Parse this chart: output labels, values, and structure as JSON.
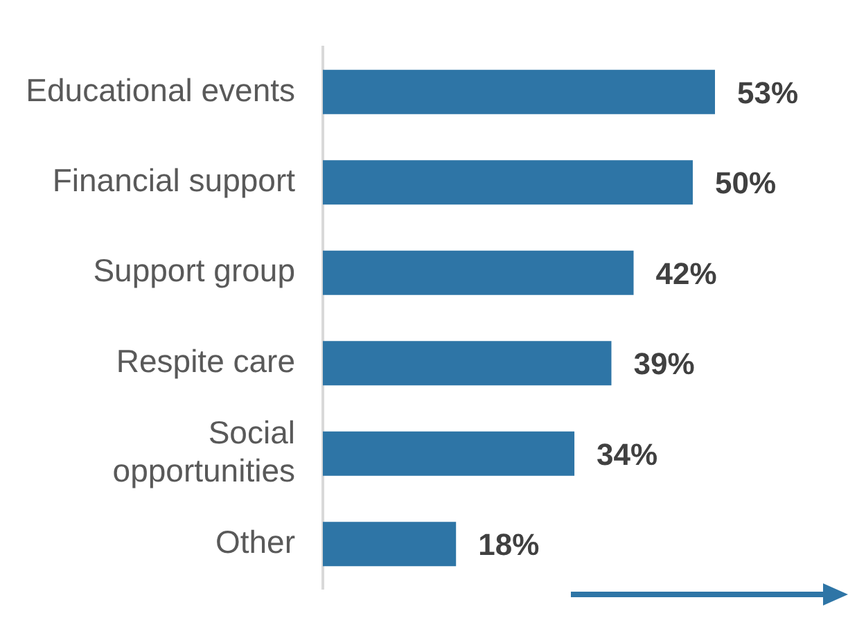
{
  "chart_data": {
    "type": "bar",
    "orientation": "horizontal",
    "categories": [
      "Educational events",
      "Financial support",
      "Support group",
      "Respite care",
      "Social\nopportunities",
      "Other"
    ],
    "values": [
      53,
      50,
      42,
      39,
      34,
      18
    ],
    "value_labels": [
      "53%",
      "50%",
      "42%",
      "39%",
      "34%",
      "18%"
    ],
    "color": "#2e75a6",
    "tick_labels": "y"
  }
}
